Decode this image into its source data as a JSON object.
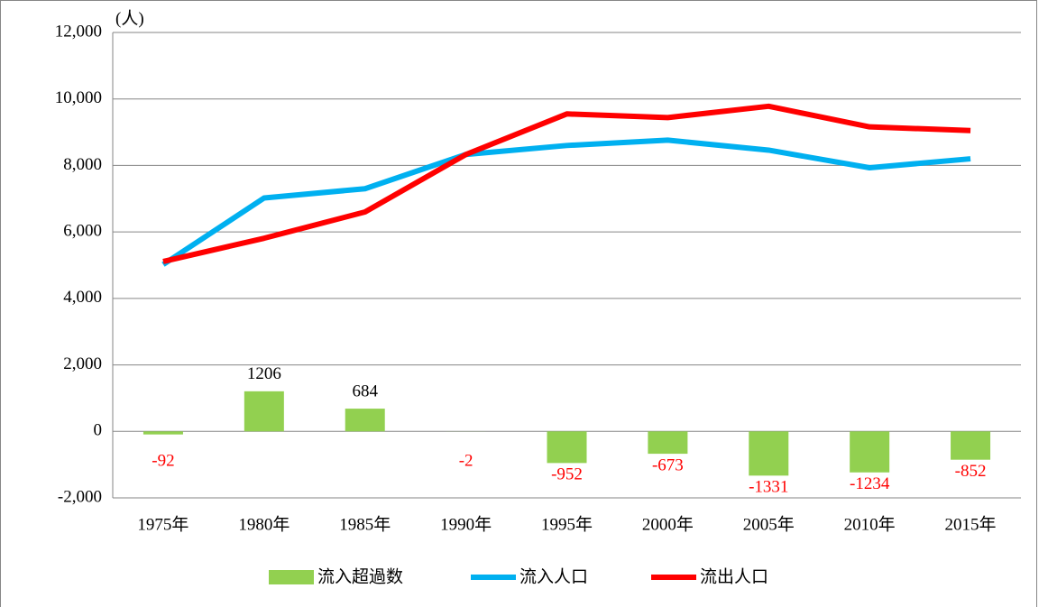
{
  "chart_data": {
    "type": "bar-line",
    "unit_label": "(人)",
    "categories": [
      "1975年",
      "1980年",
      "1985年",
      "1990年",
      "1995年",
      "2000年",
      "2005年",
      "2010年",
      "2015年"
    ],
    "series": [
      {
        "name": "流入超過数",
        "type": "bar",
        "color": "#92d050",
        "values": [
          -92,
          1206,
          684,
          -2,
          -952,
          -673,
          -1331,
          -1234,
          -852
        ]
      },
      {
        "name": "流入人口",
        "type": "line",
        "color": "#00b0f0",
        "values": [
          5020,
          7020,
          7300,
          8330,
          8600,
          8760,
          8460,
          7930,
          8200
        ]
      },
      {
        "name": "流出人口",
        "type": "line",
        "color": "#ff0000",
        "values": [
          5110,
          5810,
          6600,
          8330,
          9550,
          9440,
          9780,
          9160,
          9050
        ]
      }
    ],
    "ylim": [
      -2000,
      12000
    ],
    "yticks": [
      {
        "value": -2000,
        "label": "-2,000"
      },
      0,
      {
        "value": 2000,
        "label": "2,000"
      },
      {
        "value": 4000,
        "label": "4,000"
      },
      {
        "value": 6000,
        "label": "6,000"
      },
      {
        "value": 8000,
        "label": "8,000"
      },
      {
        "value": 10000,
        "label": "10,000"
      },
      {
        "value": 12000,
        "label": "12,000"
      }
    ],
    "grid": true,
    "legend": "bottom"
  }
}
